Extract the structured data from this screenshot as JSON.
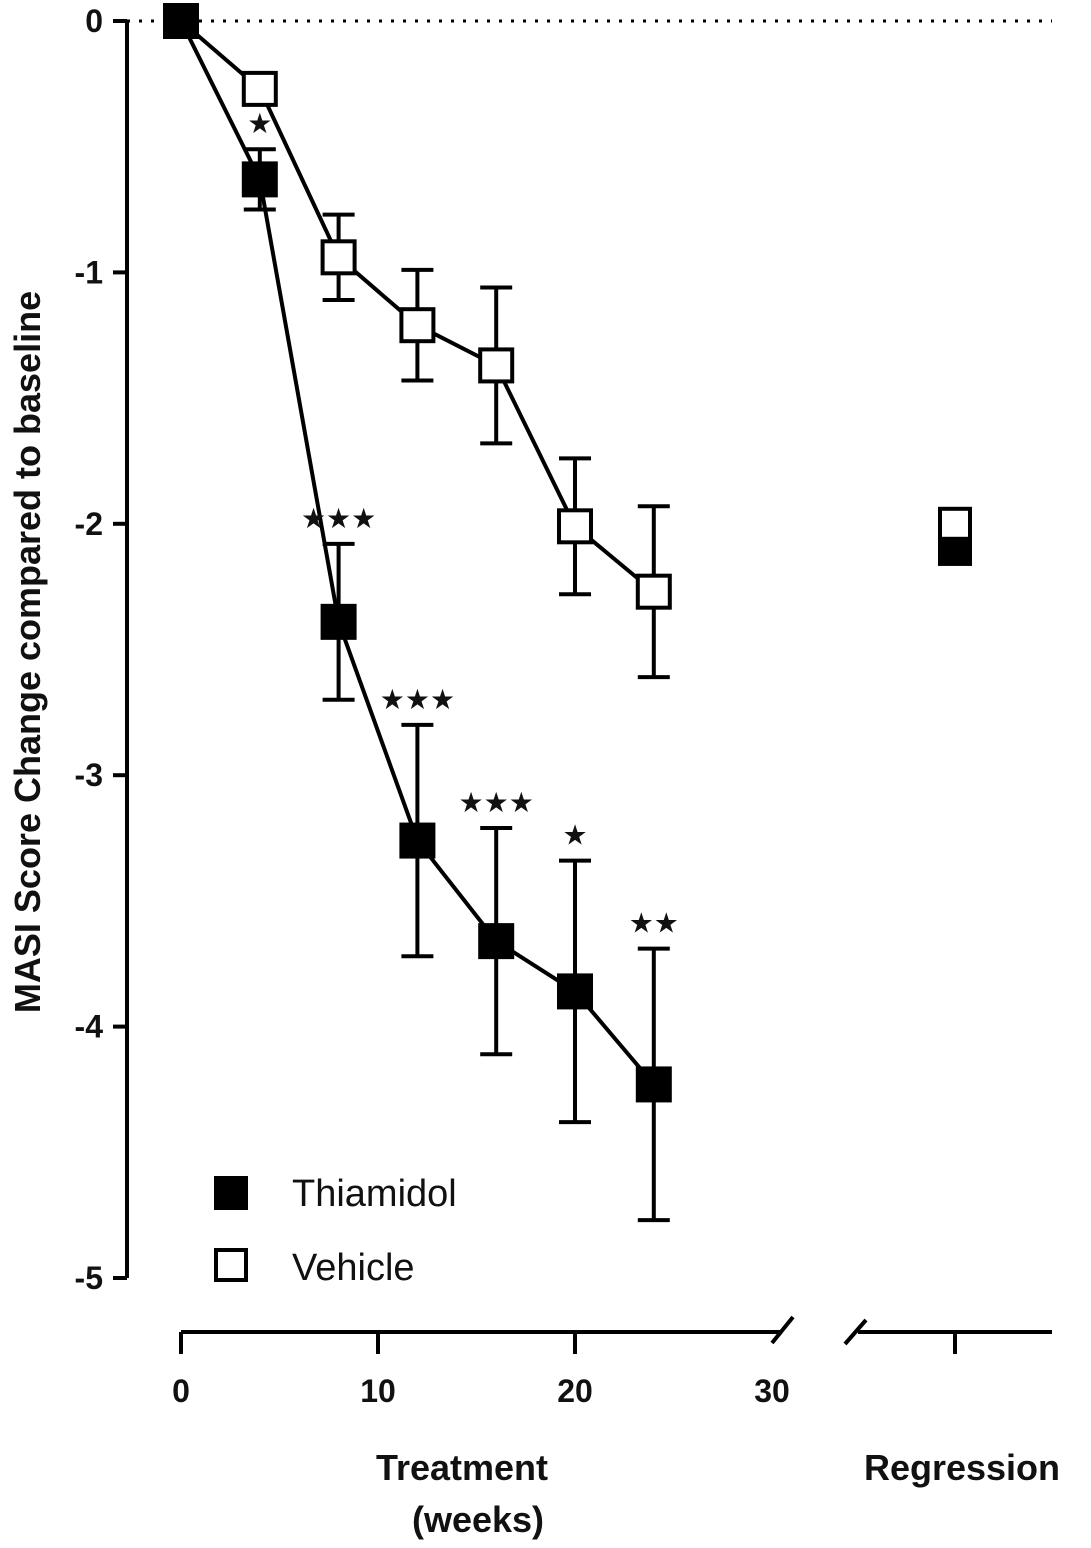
{
  "chart_data": {
    "type": "line",
    "ylabel": "MASI Score Change compared to baseline",
    "xlabel": "Treatment\n(weeks)",
    "xlabel_lines": [
      "Treatment",
      "(weeks)"
    ],
    "regression_label": "Regression",
    "ylim": [
      -5,
      0
    ],
    "yticks": [
      0,
      -1,
      -2,
      -3,
      -4,
      -5
    ],
    "ytick_labels": [
      "0",
      "-1",
      "-2",
      "-3",
      "-4",
      "-5"
    ],
    "xlim": [
      0,
      30
    ],
    "xticks": [
      0,
      10,
      20,
      30
    ],
    "xtick_labels": [
      "0",
      "10",
      "20",
      "30"
    ],
    "baseline_reference": 0,
    "legend_position": "bottom-left",
    "series": [
      {
        "name": "Thiamidol",
        "marker": "filled-square",
        "color": "#000000",
        "x": [
          0,
          4,
          8,
          12,
          16,
          20,
          24
        ],
        "y": [
          0,
          -0.63,
          -2.39,
          -3.26,
          -3.66,
          -3.86,
          -4.23
        ],
        "err": [
          0,
          0.12,
          0.31,
          0.46,
          0.45,
          0.52,
          0.54
        ],
        "significance": [
          "",
          "★",
          "★★★",
          "★★★",
          "★★★",
          "★",
          "★★"
        ],
        "regression_value": -2.1
      },
      {
        "name": "Vehicle",
        "marker": "open-square",
        "color": "#000000",
        "x": [
          0,
          4,
          8,
          12,
          16,
          20,
          24
        ],
        "y": [
          0,
          -0.27,
          -0.94,
          -1.21,
          -1.37,
          -2.01,
          -2.27
        ],
        "err": [
          0,
          0.05,
          0.17,
          0.22,
          0.31,
          0.27,
          0.34
        ],
        "regression_value": -2.0
      }
    ]
  }
}
